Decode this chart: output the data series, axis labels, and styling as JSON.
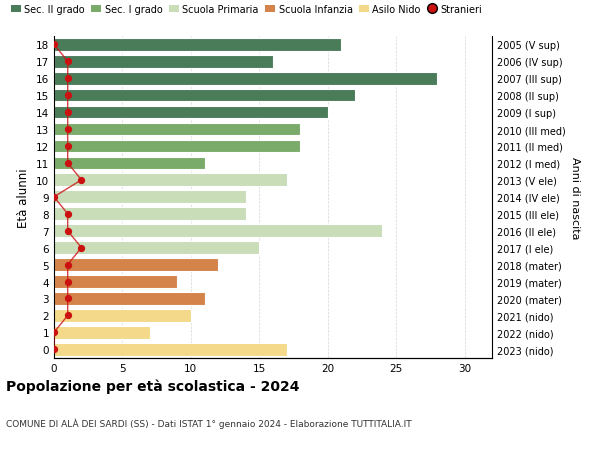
{
  "ages": [
    18,
    17,
    16,
    15,
    14,
    13,
    12,
    11,
    10,
    9,
    8,
    7,
    6,
    5,
    4,
    3,
    2,
    1,
    0
  ],
  "right_labels": [
    "2005 (V sup)",
    "2006 (IV sup)",
    "2007 (III sup)",
    "2008 (II sup)",
    "2009 (I sup)",
    "2010 (III med)",
    "2011 (II med)",
    "2012 (I med)",
    "2013 (V ele)",
    "2014 (IV ele)",
    "2015 (III ele)",
    "2016 (II ele)",
    "2017 (I ele)",
    "2018 (mater)",
    "2019 (mater)",
    "2020 (mater)",
    "2021 (nido)",
    "2022 (nido)",
    "2023 (nido)"
  ],
  "bar_values": [
    21,
    16,
    28,
    22,
    20,
    18,
    18,
    11,
    17,
    14,
    14,
    24,
    15,
    12,
    9,
    11,
    10,
    7,
    17
  ],
  "bar_colors": [
    "#4a7c59",
    "#4a7c59",
    "#4a7c59",
    "#4a7c59",
    "#4a7c59",
    "#7aab6a",
    "#7aab6a",
    "#7aab6a",
    "#c8ddb8",
    "#c8ddb8",
    "#c8ddb8",
    "#c8ddb8",
    "#c8ddb8",
    "#d4834a",
    "#d4834a",
    "#d4834a",
    "#f5d98a",
    "#f5d98a",
    "#f5d98a"
  ],
  "stranieri_x": [
    0,
    1,
    1,
    1,
    1,
    1,
    1,
    1,
    2,
    0,
    1,
    1,
    2,
    1,
    1,
    1,
    1,
    0,
    0
  ],
  "legend_items": [
    {
      "label": "Sec. II grado",
      "color": "#4a7c59"
    },
    {
      "label": "Sec. I grado",
      "color": "#7aab6a"
    },
    {
      "label": "Scuola Primaria",
      "color": "#c8ddb8"
    },
    {
      "label": "Scuola Infanzia",
      "color": "#d4834a"
    },
    {
      "label": "Asilo Nido",
      "color": "#f5d98a"
    },
    {
      "label": "Stranieri",
      "color": "#cc1111"
    }
  ],
  "ylabel": "Età alunni",
  "right_ylabel": "Anni di nascita",
  "title": "Popolazione per età scolastica - 2024",
  "subtitle": "COMUNE DI ALÀ DEI SARDI (SS) - Dati ISTAT 1° gennaio 2024 - Elaborazione TUTTITALIA.IT",
  "xlim": [
    0,
    32
  ],
  "xticks": [
    0,
    5,
    10,
    15,
    20,
    25,
    30
  ],
  "grid_color": "#cccccc"
}
